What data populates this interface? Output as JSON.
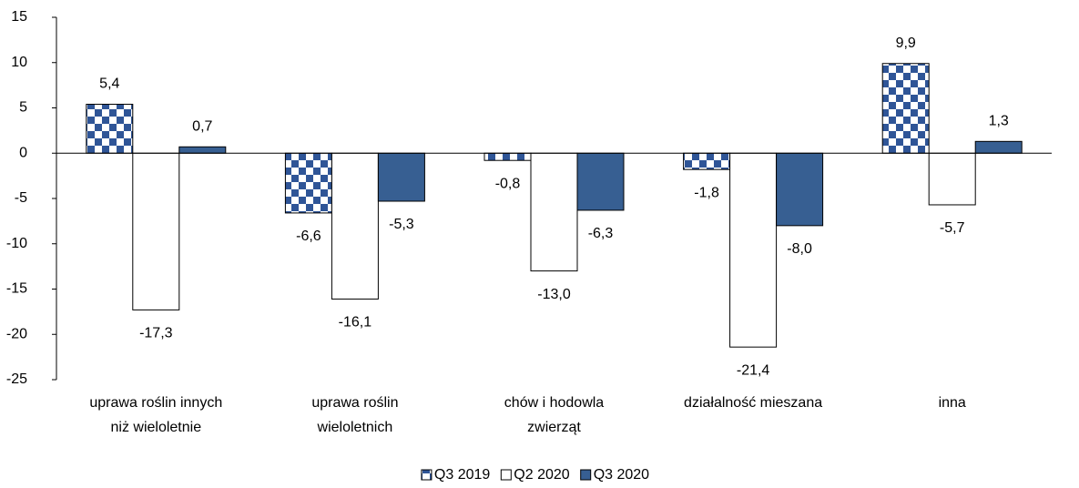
{
  "chart_data": {
    "type": "bar",
    "categories": [
      "uprawa roślin innych niż wieloletnie",
      "uprawa roślin wieloletnich",
      "chów i hodowla zwierząt",
      "działalność mieszana",
      "inna"
    ],
    "series": [
      {
        "name": "Q3 2019",
        "color": "#2f5597",
        "pattern": "checker",
        "values": [
          5.4,
          -6.6,
          -0.8,
          -1.8,
          9.9
        ],
        "value_labels": [
          "5,4",
          "-6,6",
          "-0,8",
          "-1,8",
          "9,9"
        ]
      },
      {
        "name": "Q2 2020",
        "color": "#ffffff",
        "values": [
          -17.3,
          -16.1,
          -13.0,
          -21.4,
          -5.7
        ],
        "value_labels": [
          "-17,3",
          "-16,1",
          "-13,0",
          "-21,4",
          "-5,7"
        ]
      },
      {
        "name": "Q3 2020",
        "color": "#375f92",
        "values": [
          0.7,
          -5.3,
          -6.3,
          -8.0,
          1.3
        ],
        "value_labels": [
          "0,7",
          "-5,3",
          "-6,3",
          "-8,0",
          "1,3"
        ]
      }
    ],
    "ylim": [
      -25,
      15
    ],
    "yticks": [
      15,
      10,
      5,
      0,
      -5,
      -10,
      -15,
      -20,
      -25
    ],
    "legend": "bottom"
  }
}
